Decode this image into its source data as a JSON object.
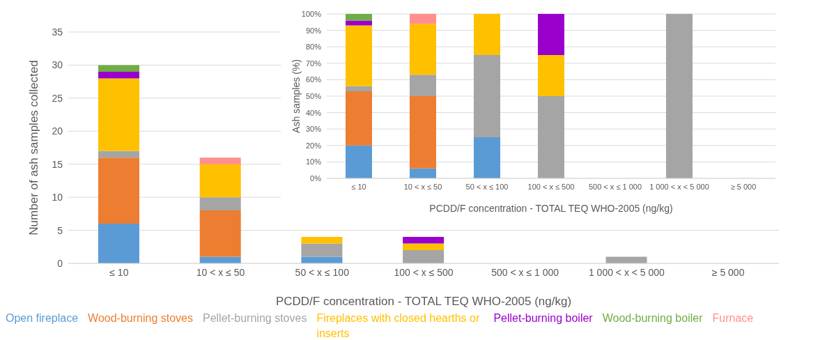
{
  "chart_data": [
    {
      "type": "bar",
      "stacked": true,
      "categories": [
        "≤ 10",
        "10 < x ≤ 50",
        "50 < x ≤ 100",
        "100 < x ≤ 500",
        "500 < x ≤ 1 000",
        "1 000 < x < 5 000",
        "≥ 5 000"
      ],
      "xlabel": "PCDD/F concentration - TOTAL TEQ WHO-2005 (ng/kg)",
      "ylabel": "Number of ash samples collected",
      "ylim": [
        0,
        35
      ],
      "yticks": [
        0,
        5,
        10,
        15,
        20,
        25,
        30,
        35
      ],
      "grid": "y",
      "legend": "bottom",
      "series": [
        {
          "name": "Open fireplace",
          "color": "#5b9bd5",
          "values": [
            6,
            1,
            1,
            0,
            0,
            0,
            0
          ]
        },
        {
          "name": "Wood-burning stoves",
          "color": "#ed7d31",
          "values": [
            10,
            7,
            0,
            0,
            0,
            0,
            0
          ]
        },
        {
          "name": "Pellet-burning stoves",
          "color": "#a5a5a5",
          "values": [
            1,
            2,
            2,
            2,
            0,
            1,
            0
          ]
        },
        {
          "name": "Fireplaces with closed hearths or inserts",
          "color": "#ffc000",
          "values": [
            11,
            5,
            1,
            1,
            0,
            0,
            0
          ]
        },
        {
          "name": "Pellet-burning boiler",
          "color": "#9900cc",
          "values": [
            1,
            0,
            0,
            1,
            0,
            0,
            0
          ]
        },
        {
          "name": "Wood-burning boiler",
          "color": "#70ad47",
          "values": [
            1,
            0,
            0,
            0,
            0,
            0,
            0
          ]
        },
        {
          "name": "Furnace",
          "color": "#ff8f8f",
          "values": [
            0,
            1,
            0,
            0,
            0,
            0,
            0
          ]
        }
      ]
    },
    {
      "type": "bar",
      "stacked": true,
      "categories": [
        "≤ 10",
        "10 < x ≤ 50",
        "50 < x ≤ 100",
        "100 < x ≤ 500",
        "500 < x ≤ 1 000",
        "1 000 < x < 5 000",
        "≥ 5 000"
      ],
      "xlabel": "PCDD/F concentration - TOTAL TEQ WHO-2005 (ng/kg)",
      "ylabel": "Ash samples (%)",
      "ylim": [
        0,
        100
      ],
      "yticks": [
        {
          "value": 0,
          "label": "0%"
        },
        {
          "value": 10,
          "label": "10%"
        },
        {
          "value": 20,
          "label": "20%"
        },
        {
          "value": 30,
          "label": "30%"
        },
        {
          "value": 40,
          "label": "40%"
        },
        {
          "value": 50,
          "label": "50%"
        },
        {
          "value": 60,
          "label": "60%"
        },
        {
          "value": 70,
          "label": "70%"
        },
        {
          "value": 80,
          "label": "80%"
        },
        {
          "value": 90,
          "label": "90%"
        },
        {
          "value": 100,
          "label": "100%"
        }
      ],
      "grid": "y",
      "series": [
        {
          "color": "#5b9bd5",
          "values": [
            20,
            6,
            25,
            0,
            0,
            0,
            0
          ]
        },
        {
          "color": "#ed7d31",
          "values": [
            33,
            44,
            0,
            0,
            0,
            0,
            0
          ]
        },
        {
          "color": "#a5a5a5",
          "values": [
            3,
            13,
            50,
            50,
            0,
            100,
            0
          ]
        },
        {
          "color": "#ffc000",
          "values": [
            37,
            31,
            25,
            25,
            0,
            0,
            0
          ]
        },
        {
          "color": "#9900cc",
          "values": [
            3,
            0,
            0,
            25,
            0,
            0,
            0
          ]
        },
        {
          "color": "#70ad47",
          "values": [
            4,
            0,
            0,
            0,
            0,
            0,
            0
          ]
        },
        {
          "color": "#ff8f8f",
          "values": [
            0,
            6,
            0,
            0,
            0,
            0,
            0
          ]
        }
      ]
    }
  ]
}
